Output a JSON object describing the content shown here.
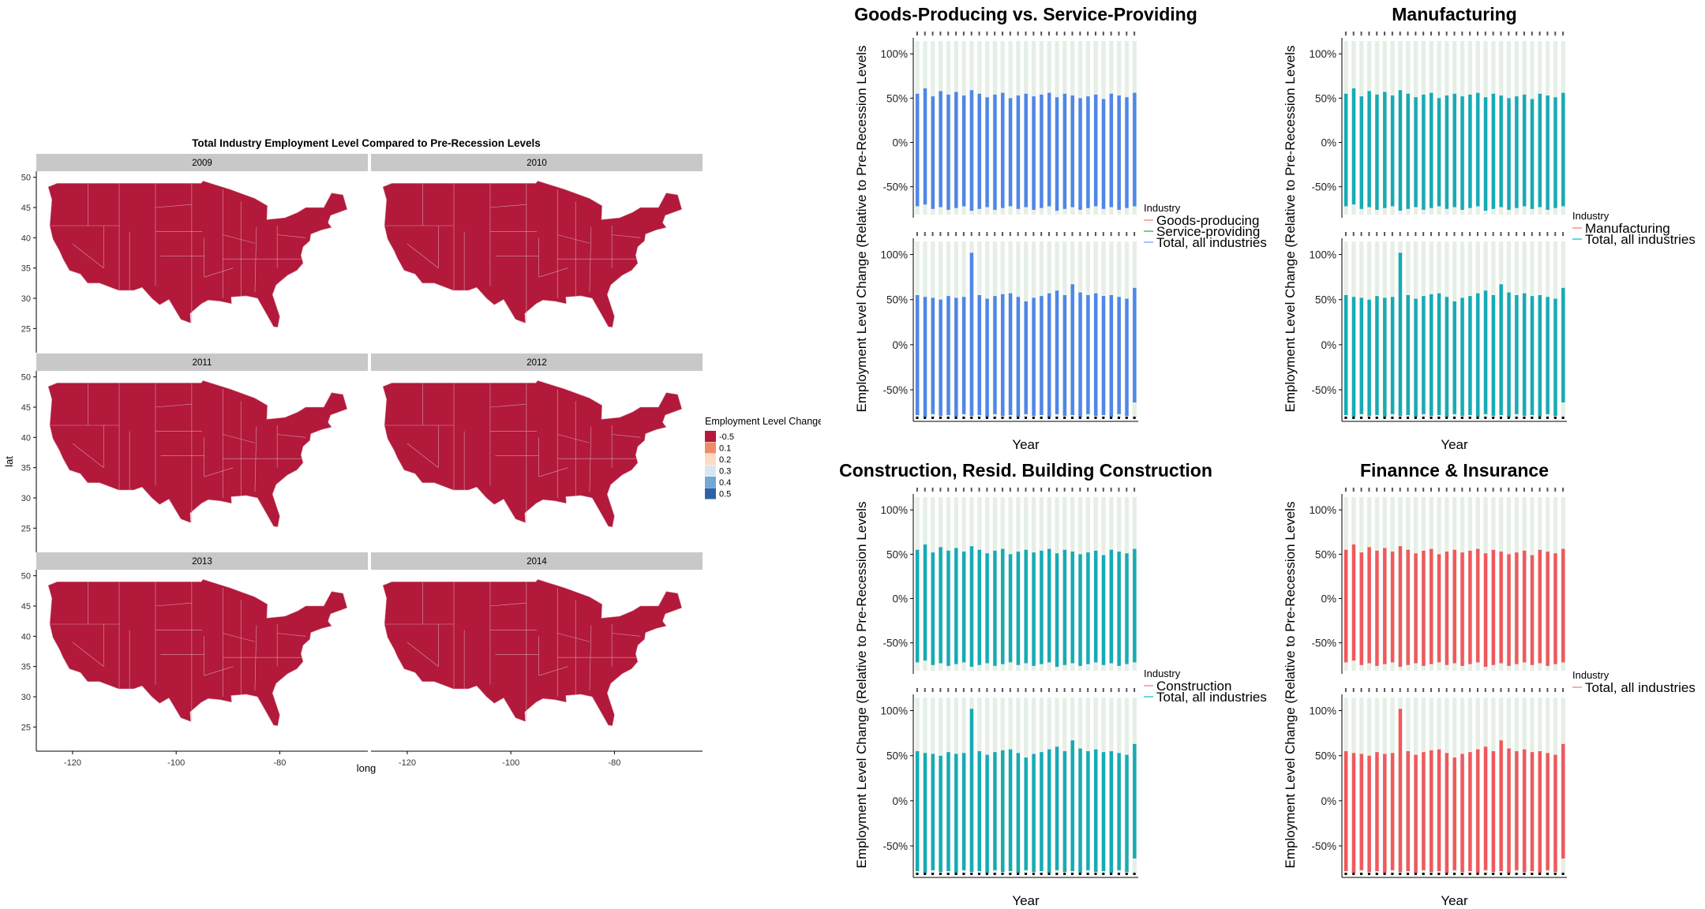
{
  "map_panel": {
    "title": "Total Industry Employment Level Compared to Pre-Recession Levels",
    "xlabel": "long",
    "ylabel": "lat",
    "facets": [
      "2009",
      "2010",
      "2011",
      "2012",
      "2013",
      "2014"
    ],
    "x_ticks": [
      "-120",
      "-100",
      "-80"
    ],
    "y_ticks": [
      "50",
      "45",
      "40",
      "35",
      "30",
      "25"
    ],
    "fill_color": "#b2193a",
    "legend": {
      "title": "Employment Level Changes",
      "items": [
        {
          "label": "-0.5",
          "color": "#b2193a"
        },
        {
          "label": "0.1",
          "color": "#f08b68"
        },
        {
          "label": "0.2",
          "color": "#fddbc7"
        },
        {
          "label": "0.3",
          "color": "#d9e6f2"
        },
        {
          "label": "0.4",
          "color": "#71a8d4"
        },
        {
          "label": "0.5",
          "color": "#2e62a6"
        }
      ]
    }
  },
  "industry_charts": {
    "ylabel": "Employment Level Change (Relative to Pre-Recession Levels",
    "xlabel": "Year",
    "y_ticks": [
      "100%",
      "50%",
      "0%",
      "-50%"
    ],
    "legend_title": "Industry",
    "panels": [
      {
        "title": "Goods-Producing vs. Service-Providing",
        "bar_color": "#4f86e8",
        "legend": [
          {
            "label": "Goods-producing",
            "color": "#f8766d"
          },
          {
            "label": "Service-providing",
            "color": "#00ba38"
          },
          {
            "label": "Total, all industries",
            "color": "#619cff"
          }
        ]
      },
      {
        "title": "Manufacturing",
        "bar_color": "#16abb4",
        "legend": [
          {
            "label": "Manufacturing",
            "color": "#f8766d"
          },
          {
            "label": "Total, all industries",
            "color": "#00bfc4"
          }
        ]
      },
      {
        "title": "Construction, Resid. Building Construction",
        "bar_color": "#16abb4",
        "legend": [
          {
            "label": "Construction",
            "color": "#f8766d"
          },
          {
            "label": "Total, all industries",
            "color": "#00bfc4"
          }
        ]
      },
      {
        "title": "Finannce & Insurance",
        "bar_color": "#f0595c",
        "legend": [
          {
            "label": "Total, all industries",
            "color": "#f8766d"
          }
        ]
      }
    ]
  },
  "chart_data": [
    {
      "type": "heatmap",
      "title": "Total Industry Employment Level Compared to Pre-Recession Levels",
      "xlabel": "long",
      "ylabel": "lat",
      "facets": [
        "2009",
        "2010",
        "2011",
        "2012",
        "2013",
        "2014"
      ],
      "values_by_facet": [
        -0.5,
        -0.5,
        -0.5,
        -0.5,
        -0.5,
        -0.5
      ],
      "xlim": [
        -127,
        -63
      ],
      "ylim": [
        21,
        51
      ],
      "legend_title": "Employment Level Changes",
      "legend": [
        "-0.5",
        "0.1",
        "0.2",
        "0.3",
        "0.4",
        "0.5"
      ],
      "legend_placement": "right",
      "grid": false
    },
    {
      "type": "bar",
      "title": "Goods-Producing vs. Service-Providing",
      "xlabel": "Year",
      "ylabel": "Employment Level Change (Relative to Pre-Recession Levels",
      "ylim": [
        -85,
        118
      ],
      "facet_rows": [
        {
          "top": [
            55,
            61,
            52,
            58,
            54,
            57,
            53,
            59,
            55,
            51,
            54,
            56,
            50,
            53,
            55,
            52,
            54,
            56,
            51,
            55,
            53,
            50,
            52,
            54,
            49,
            55,
            53,
            51,
            56
          ],
          "bottom": [
            -72,
            -70,
            -75,
            -73,
            -76,
            -74,
            -72,
            -77,
            -75,
            -73,
            -76,
            -74,
            -72,
            -75,
            -73,
            -76,
            -74,
            -72,
            -77,
            -75,
            -73,
            -76,
            -74,
            -72,
            -75,
            -73,
            -76,
            -74,
            -72
          ]
        },
        {
          "top": [
            55,
            53,
            52,
            50,
            54,
            52,
            53,
            102,
            55,
            51,
            54,
            56,
            57,
            53,
            48,
            52,
            54,
            57,
            60,
            55,
            67,
            58,
            55,
            57,
            54,
            55,
            53,
            51,
            63
          ],
          "bottom": [
            -78,
            -80,
            -77,
            -79,
            -78,
            -80,
            -77,
            -79,
            -78,
            -80,
            -77,
            -79,
            -78,
            -80,
            -77,
            -79,
            -78,
            -80,
            -77,
            -79,
            -78,
            -80,
            -77,
            -79,
            -78,
            -80,
            -77,
            -79,
            -64
          ]
        }
      ],
      "legend_title": "Industry",
      "series": [
        {
          "name": "Goods-producing"
        },
        {
          "name": "Service-providing"
        },
        {
          "name": "Total, all industries"
        }
      ],
      "legend_placement": "right",
      "grid": false
    },
    {
      "type": "bar",
      "title": "Manufacturing",
      "xlabel": "Year",
      "ylabel": "Employment Level Change (Relative to Pre-Recession Levels",
      "ylim": [
        -85,
        118
      ],
      "facet_rows": [
        {
          "top": [
            55,
            61,
            52,
            58,
            54,
            57,
            53,
            59,
            55,
            51,
            54,
            56,
            50,
            53,
            55,
            52,
            54,
            56,
            51,
            55,
            53,
            50,
            52,
            54,
            49,
            55,
            53,
            51,
            56
          ],
          "bottom": [
            -72,
            -70,
            -75,
            -73,
            -76,
            -74,
            -72,
            -77,
            -75,
            -73,
            -76,
            -74,
            -72,
            -75,
            -73,
            -76,
            -74,
            -72,
            -77,
            -75,
            -73,
            -76,
            -74,
            -72,
            -75,
            -73,
            -76,
            -74,
            -72
          ]
        },
        {
          "top": [
            55,
            53,
            52,
            50,
            54,
            52,
            53,
            102,
            55,
            51,
            54,
            56,
            57,
            53,
            48,
            52,
            54,
            57,
            60,
            55,
            67,
            58,
            55,
            57,
            54,
            55,
            53,
            51,
            63
          ],
          "bottom": [
            -78,
            -80,
            -77,
            -79,
            -78,
            -80,
            -77,
            -79,
            -78,
            -80,
            -77,
            -79,
            -78,
            -80,
            -77,
            -79,
            -78,
            -80,
            -77,
            -79,
            -78,
            -80,
            -77,
            -79,
            -78,
            -80,
            -77,
            -79,
            -64
          ]
        }
      ],
      "legend_title": "Industry",
      "series": [
        {
          "name": "Manufacturing"
        },
        {
          "name": "Total, all industries"
        }
      ],
      "legend_placement": "right",
      "grid": false
    },
    {
      "type": "bar",
      "title": "Construction, Resid. Building Construction",
      "xlabel": "Year",
      "ylabel": "Employment Level Change (Relative to Pre-Recession Levels",
      "ylim": [
        -85,
        118
      ],
      "facet_rows": [
        {
          "top": [
            55,
            61,
            52,
            58,
            54,
            57,
            53,
            59,
            55,
            51,
            54,
            56,
            50,
            53,
            55,
            52,
            54,
            56,
            51,
            55,
            53,
            50,
            52,
            54,
            49,
            55,
            53,
            51,
            56
          ],
          "bottom": [
            -72,
            -70,
            -75,
            -73,
            -76,
            -74,
            -72,
            -77,
            -75,
            -73,
            -76,
            -74,
            -72,
            -75,
            -73,
            -76,
            -74,
            -72,
            -77,
            -75,
            -73,
            -76,
            -74,
            -72,
            -75,
            -73,
            -76,
            -74,
            -72
          ]
        },
        {
          "top": [
            55,
            53,
            52,
            50,
            54,
            52,
            53,
            102,
            55,
            51,
            54,
            56,
            57,
            53,
            48,
            52,
            54,
            57,
            60,
            55,
            67,
            58,
            55,
            57,
            54,
            55,
            53,
            51,
            63
          ],
          "bottom": [
            -78,
            -80,
            -77,
            -79,
            -78,
            -80,
            -77,
            -79,
            -78,
            -80,
            -77,
            -79,
            -78,
            -80,
            -77,
            -79,
            -78,
            -80,
            -77,
            -79,
            -78,
            -80,
            -77,
            -79,
            -78,
            -80,
            -77,
            -79,
            -64
          ]
        }
      ],
      "legend_title": "Industry",
      "series": [
        {
          "name": "Construction"
        },
        {
          "name": "Total, all industries"
        }
      ],
      "legend_placement": "right",
      "grid": false
    },
    {
      "type": "bar",
      "title": "Finannce & Insurance",
      "xlabel": "Year",
      "ylabel": "Employment Level Change (Relative to Pre-Recession Levels",
      "ylim": [
        -85,
        118
      ],
      "facet_rows": [
        {
          "top": [
            55,
            61,
            52,
            58,
            54,
            57,
            53,
            59,
            55,
            51,
            54,
            56,
            50,
            53,
            55,
            52,
            54,
            56,
            51,
            55,
            53,
            50,
            52,
            54,
            49,
            55,
            53,
            51,
            56
          ],
          "bottom": [
            -72,
            -70,
            -75,
            -73,
            -76,
            -74,
            -72,
            -77,
            -75,
            -73,
            -76,
            -74,
            -72,
            -75,
            -73,
            -76,
            -74,
            -72,
            -77,
            -75,
            -73,
            -76,
            -74,
            -72,
            -75,
            -73,
            -76,
            -74,
            -72
          ]
        },
        {
          "top": [
            55,
            53,
            52,
            50,
            54,
            52,
            53,
            102,
            55,
            51,
            54,
            56,
            57,
            53,
            48,
            52,
            54,
            57,
            60,
            55,
            67,
            58,
            55,
            57,
            54,
            55,
            53,
            51,
            63
          ],
          "bottom": [
            -78,
            -80,
            -77,
            -79,
            -78,
            -80,
            -77,
            -79,
            -78,
            -80,
            -77,
            -79,
            -78,
            -80,
            -77,
            -79,
            -78,
            -80,
            -77,
            -79,
            -78,
            -80,
            -77,
            -79,
            -78,
            -80,
            -77,
            -79,
            -64
          ]
        }
      ],
      "legend_title": "Industry",
      "series": [
        {
          "name": "Total, all industries"
        }
      ],
      "legend_placement": "right",
      "grid": false
    }
  ]
}
